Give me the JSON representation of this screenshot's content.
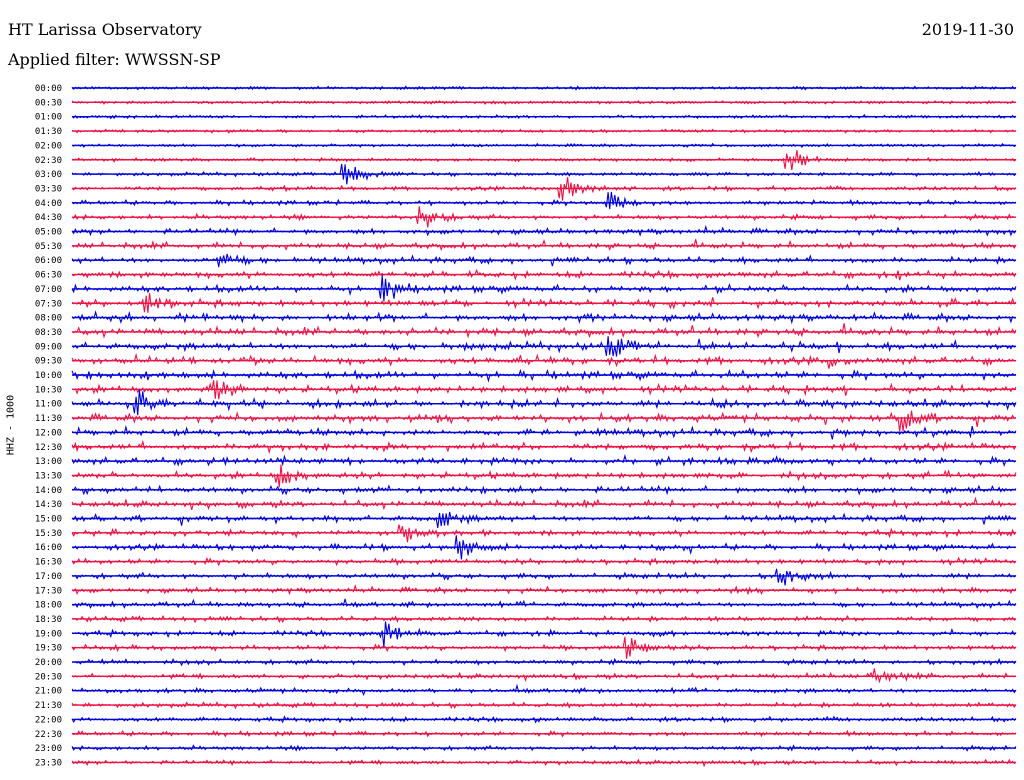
{
  "header": {
    "station": "HT Larissa Observatory",
    "date": "2019-11-30",
    "filter": "Applied filter: WWSSN-SP"
  },
  "colors": {
    "odd": "#0000dd",
    "even": "#ee1144"
  },
  "chart_data": {
    "type": "line",
    "title": "HT Larissa Observatory",
    "ylabel": "HHZ - 1000",
    "rows": [
      "00:00",
      "00:30",
      "01:00",
      "01:30",
      "02:00",
      "02:30",
      "03:00",
      "03:30",
      "04:00",
      "04:30",
      "05:00",
      "05:30",
      "06:00",
      "06:30",
      "07:00",
      "07:30",
      "08:00",
      "08:30",
      "09:00",
      "09:30",
      "10:00",
      "10:30",
      "11:00",
      "11:30",
      "12:00",
      "12:30",
      "13:00",
      "13:30",
      "14:00",
      "14:30",
      "15:00",
      "15:30",
      "16:00",
      "16:30",
      "17:00",
      "17:30",
      "18:00",
      "18:30",
      "19:00",
      "19:30",
      "20:00",
      "20:30",
      "21:00",
      "21:30",
      "22:00",
      "22:30",
      "23:00",
      "23:30"
    ],
    "amplitude_level": [
      0.15,
      0.15,
      0.15,
      0.15,
      0.15,
      0.2,
      0.25,
      0.35,
      0.4,
      0.45,
      0.55,
      0.6,
      0.65,
      0.7,
      0.75,
      0.78,
      0.8,
      0.82,
      0.85,
      0.85,
      0.85,
      0.85,
      0.85,
      0.82,
      0.8,
      0.78,
      0.75,
      0.72,
      0.7,
      0.68,
      0.65,
      0.62,
      0.6,
      0.58,
      0.55,
      0.5,
      0.5,
      0.48,
      0.5,
      0.5,
      0.45,
      0.45,
      0.42,
      0.42,
      0.4,
      0.4,
      0.38,
      0.35
    ],
    "events": [
      {
        "row": "02:30",
        "x": 0.76,
        "size": 1.0
      },
      {
        "row": "03:00",
        "x": 0.29,
        "size": 0.9
      },
      {
        "row": "03:30",
        "x": 0.52,
        "size": 0.9
      },
      {
        "row": "04:00",
        "x": 0.57,
        "size": 0.7
      },
      {
        "row": "04:30",
        "x": 0.37,
        "size": 0.9
      },
      {
        "row": "06:00",
        "x": 0.16,
        "size": 0.7
      },
      {
        "row": "07:00",
        "x": 0.33,
        "size": 0.8
      },
      {
        "row": "07:30",
        "x": 0.08,
        "size": 0.8
      },
      {
        "row": "09:00",
        "x": 0.57,
        "size": 0.8
      },
      {
        "row": "10:30",
        "x": 0.15,
        "size": 0.8
      },
      {
        "row": "11:00",
        "x": 0.07,
        "size": 0.7
      },
      {
        "row": "11:30",
        "x": 0.88,
        "size": 0.9
      },
      {
        "row": "13:30",
        "x": 0.22,
        "size": 0.7
      },
      {
        "row": "15:00",
        "x": 0.39,
        "size": 0.7
      },
      {
        "row": "15:30",
        "x": 0.35,
        "size": 0.8
      },
      {
        "row": "16:00",
        "x": 0.41,
        "size": 0.9
      },
      {
        "row": "17:00",
        "x": 0.75,
        "size": 0.8
      },
      {
        "row": "19:00",
        "x": 0.33,
        "size": 0.8
      },
      {
        "row": "19:30",
        "x": 0.59,
        "size": 0.8
      },
      {
        "row": "20:30",
        "x": 0.85,
        "size": 0.5
      }
    ]
  }
}
